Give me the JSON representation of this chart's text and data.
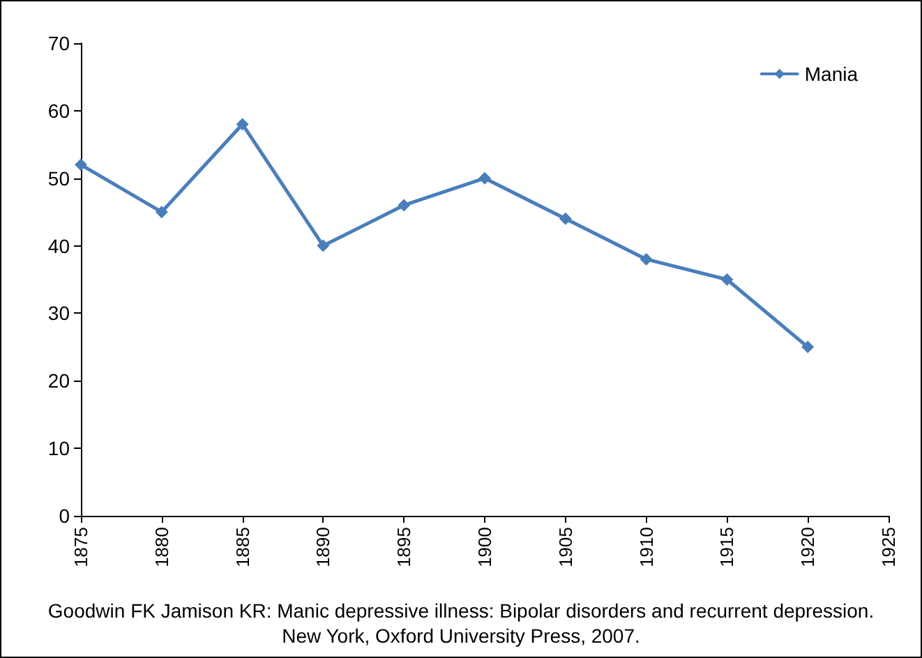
{
  "chart_data": {
    "type": "line",
    "x": [
      1875,
      1880,
      1885,
      1890,
      1895,
      1900,
      1905,
      1910,
      1915,
      1920
    ],
    "series": [
      {
        "name": "Mania",
        "color": "#4a7ebb",
        "values": [
          52,
          45,
          58,
          40,
          46,
          50,
          44,
          38,
          35,
          25
        ]
      }
    ],
    "xlim": [
      1875,
      1925
    ],
    "xticks": [
      1875,
      1880,
      1885,
      1890,
      1895,
      1900,
      1905,
      1910,
      1915,
      1920,
      1925
    ],
    "ylim": [
      0,
      70
    ],
    "yticks": [
      0,
      10,
      20,
      30,
      40,
      50,
      60,
      70
    ],
    "grid": false,
    "legend": "top right",
    "marker": "diamond",
    "line_style": "solid",
    "annotations": [
      "Goodwin FK Jamison KR: Manic depressive illness: Bipolar disorders and recurrent depression. New York, Oxford University Press, 2007."
    ]
  }
}
